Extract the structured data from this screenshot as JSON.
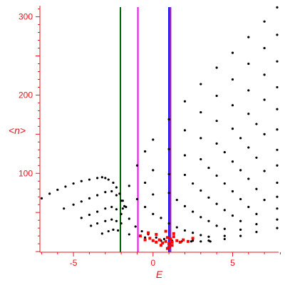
{
  "chart_data": {
    "type": "scatter",
    "title": "",
    "xlabel": "E",
    "ylabel": "<n>",
    "xlim": [
      -7,
      8
    ],
    "ylim": [
      0,
      315
    ],
    "x_ticks": [
      -5,
      0,
      5
    ],
    "y_ticks": [
      100,
      200,
      300
    ],
    "grid": false,
    "legend": "none",
    "axis_color": "#e8141e",
    "vertical_lines": [
      {
        "x": -2.05,
        "color": "#006400"
      },
      {
        "x": -0.95,
        "color": "#ff00ff"
      },
      {
        "x": 1.0,
        "color": "#0000ff"
      },
      {
        "x": 1.1,
        "color": "#9400d3"
      }
    ],
    "series": [
      {
        "color": "#000000",
        "marker": "dot",
        "points": [
          [
            -7.0,
            68
          ],
          [
            -6.5,
            74
          ],
          [
            -6.0,
            79
          ],
          [
            -5.5,
            83
          ],
          [
            -5.0,
            87
          ],
          [
            -4.5,
            90
          ],
          [
            -4.0,
            92
          ],
          [
            -3.5,
            94
          ],
          [
            -3.2,
            95
          ],
          [
            -3.0,
            94
          ],
          [
            -2.8,
            92
          ],
          [
            -2.5,
            88
          ],
          [
            -2.3,
            82
          ],
          [
            -2.1,
            74
          ],
          [
            -1.9,
            65
          ],
          [
            -1.7,
            57
          ]
        ]
      },
      {
        "color": "#000000",
        "marker": "dot",
        "points": [
          [
            -5.6,
            55
          ],
          [
            -5.0,
            60
          ],
          [
            -4.5,
            64
          ],
          [
            -4.0,
            68
          ],
          [
            -3.5,
            72
          ],
          [
            -3.0,
            76
          ],
          [
            -2.6,
            77
          ],
          [
            -2.3,
            72
          ],
          [
            -2.0,
            65
          ],
          [
            -1.8,
            58
          ]
        ]
      },
      {
        "color": "#000000",
        "marker": "dot",
        "points": [
          [
            -4.5,
            43
          ],
          [
            -4.0,
            47
          ],
          [
            -3.5,
            51
          ],
          [
            -3.0,
            55
          ],
          [
            -2.6,
            57
          ],
          [
            -2.3,
            54
          ],
          [
            -2.0,
            48
          ]
        ]
      },
      {
        "color": "#000000",
        "marker": "dot",
        "points": [
          [
            -3.9,
            33
          ],
          [
            -3.5,
            36
          ],
          [
            -3.0,
            39
          ],
          [
            -2.6,
            41
          ],
          [
            -2.3,
            39
          ],
          [
            -2.0,
            36
          ]
        ]
      },
      {
        "color": "#000000",
        "marker": "dot",
        "points": [
          [
            -3.2,
            23
          ],
          [
            -2.8,
            26
          ],
          [
            -2.5,
            28
          ],
          [
            -2.2,
            27
          ]
        ]
      },
      {
        "color": "#000000",
        "marker": "dot",
        "points": [
          [
            -1.9,
            55
          ],
          [
            -1.5,
            84
          ],
          [
            -1.0,
            110
          ],
          [
            -0.5,
            128
          ],
          [
            0.0,
            143
          ],
          [
            1.0,
            169
          ],
          [
            2.0,
            192
          ],
          [
            3.0,
            214
          ],
          [
            4.0,
            235
          ],
          [
            5.0,
            254
          ],
          [
            6.0,
            274
          ],
          [
            7.0,
            294
          ],
          [
            7.8,
            312
          ]
        ]
      },
      {
        "color": "#000000",
        "marker": "dot",
        "points": [
          [
            -1.5,
            42
          ],
          [
            -1.0,
            67
          ],
          [
            -0.5,
            88
          ],
          [
            0.0,
            104
          ],
          [
            1.0,
            131
          ],
          [
            2.0,
            155
          ],
          [
            3.0,
            178
          ],
          [
            4.0,
            199
          ],
          [
            5.0,
            220
          ],
          [
            6.0,
            240
          ],
          [
            7.0,
            260
          ],
          [
            7.8,
            277
          ]
        ]
      },
      {
        "color": "#000000",
        "marker": "dot",
        "points": [
          [
            -1.1,
            32
          ],
          [
            -0.5,
            57
          ],
          [
            0.0,
            73
          ],
          [
            1.0,
            99
          ],
          [
            2.0,
            123
          ],
          [
            3.0,
            145
          ],
          [
            4.0,
            167
          ],
          [
            5.0,
            187
          ],
          [
            6.0,
            206
          ],
          [
            7.0,
            226
          ],
          [
            7.8,
            243
          ]
        ]
      },
      {
        "color": "#000000",
        "marker": "dot",
        "points": [
          [
            -0.7,
            26
          ],
          [
            0.0,
            48
          ],
          [
            1.0,
            75
          ],
          [
            2.0,
            98
          ],
          [
            3.0,
            118
          ],
          [
            4.0,
            138
          ],
          [
            5.0,
            157
          ],
          [
            6.0,
            176
          ],
          [
            7.0,
            194
          ],
          [
            7.8,
            210
          ]
        ]
      },
      {
        "color": "#000000",
        "marker": "dot",
        "points": [
          [
            -0.3,
            22
          ],
          [
            0.5,
            43
          ],
          [
            1.5,
            66
          ],
          [
            2.5,
            87
          ],
          [
            3.5,
            107
          ],
          [
            4.5,
            127
          ],
          [
            5.5,
            145
          ],
          [
            6.5,
            163
          ],
          [
            7.8,
            182
          ]
        ]
      },
      {
        "color": "#000000",
        "marker": "dot",
        "points": [
          [
            0.2,
            18
          ],
          [
            1.0,
            36
          ],
          [
            2.0,
            58
          ],
          [
            3.0,
            78
          ],
          [
            4.0,
            97
          ],
          [
            5.0,
            115
          ],
          [
            6.0,
            133
          ],
          [
            7.0,
            150
          ],
          [
            7.8,
            156
          ]
        ]
      },
      {
        "color": "#000000",
        "marker": "dot",
        "points": [
          [
            0.7,
            16
          ],
          [
            1.5,
            31
          ],
          [
            2.5,
            51
          ],
          [
            3.5,
            69
          ],
          [
            4.5,
            87
          ],
          [
            5.5,
            104
          ],
          [
            6.5,
            120
          ],
          [
            7.8,
            130
          ]
        ]
      },
      {
        "color": "#000000",
        "marker": "dot",
        "points": [
          [
            1.2,
            14
          ],
          [
            2.0,
            27
          ],
          [
            3.0,
            44
          ],
          [
            4.0,
            61
          ],
          [
            5.0,
            77
          ],
          [
            6.0,
            93
          ],
          [
            7.0,
            103
          ],
          [
            7.8,
            110
          ]
        ]
      },
      {
        "color": "#000000",
        "marker": "dot",
        "points": [
          [
            1.8,
            13
          ],
          [
            2.5,
            24
          ],
          [
            3.5,
            39
          ],
          [
            4.5,
            53
          ],
          [
            5.5,
            67
          ],
          [
            6.5,
            80
          ],
          [
            7.8,
            88
          ]
        ]
      },
      {
        "color": "#000000",
        "marker": "dot",
        "points": [
          [
            2.4,
            13
          ],
          [
            3.0,
            21
          ],
          [
            4.0,
            33
          ],
          [
            5.0,
            46
          ],
          [
            6.0,
            57
          ],
          [
            7.0,
            66
          ],
          [
            7.8,
            70
          ]
        ]
      },
      {
        "color": "#000000",
        "marker": "dot",
        "points": [
          [
            3.0,
            13
          ],
          [
            3.5,
            19
          ],
          [
            4.5,
            29
          ],
          [
            5.5,
            39
          ],
          [
            6.5,
            48
          ],
          [
            7.8,
            55
          ]
        ]
      },
      {
        "color": "#000000",
        "marker": "dot",
        "points": [
          [
            3.6,
            13
          ],
          [
            4.5,
            20
          ],
          [
            5.5,
            28
          ],
          [
            6.5,
            35
          ],
          [
            7.8,
            41
          ]
        ]
      },
      {
        "color": "#000000",
        "marker": "dot",
        "points": [
          [
            -1.5,
            22
          ],
          [
            -0.5,
            18
          ],
          [
            0.5,
            14
          ],
          [
            1.5,
            14
          ],
          [
            2.5,
            14
          ],
          [
            3.5,
            14
          ],
          [
            4.5,
            16
          ],
          [
            5.5,
            20
          ],
          [
            6.5,
            25
          ],
          [
            7.8,
            30
          ]
        ]
      },
      {
        "color": "#ff0000",
        "marker": "square",
        "points": [
          [
            -0.8,
            20
          ],
          [
            -0.5,
            15
          ],
          [
            -0.2,
            17
          ],
          [
            0.0,
            14
          ],
          [
            0.2,
            12
          ],
          [
            0.4,
            15
          ],
          [
            0.6,
            11
          ],
          [
            0.8,
            13
          ],
          [
            0.9,
            18
          ],
          [
            1.0,
            10
          ],
          [
            1.1,
            16
          ],
          [
            1.2,
            12
          ],
          [
            1.3,
            19
          ],
          [
            1.5,
            14
          ],
          [
            1.7,
            12
          ],
          [
            1.9,
            15
          ],
          [
            2.2,
            13
          ],
          [
            2.5,
            17
          ],
          [
            0.8,
            26
          ],
          [
            1.3,
            23
          ],
          [
            0.2,
            22
          ],
          [
            -0.3,
            24
          ],
          [
            0.5,
            8
          ],
          [
            1.0,
            6
          ],
          [
            1.2,
            8
          ],
          [
            0.9,
            4
          ]
        ]
      }
    ]
  }
}
